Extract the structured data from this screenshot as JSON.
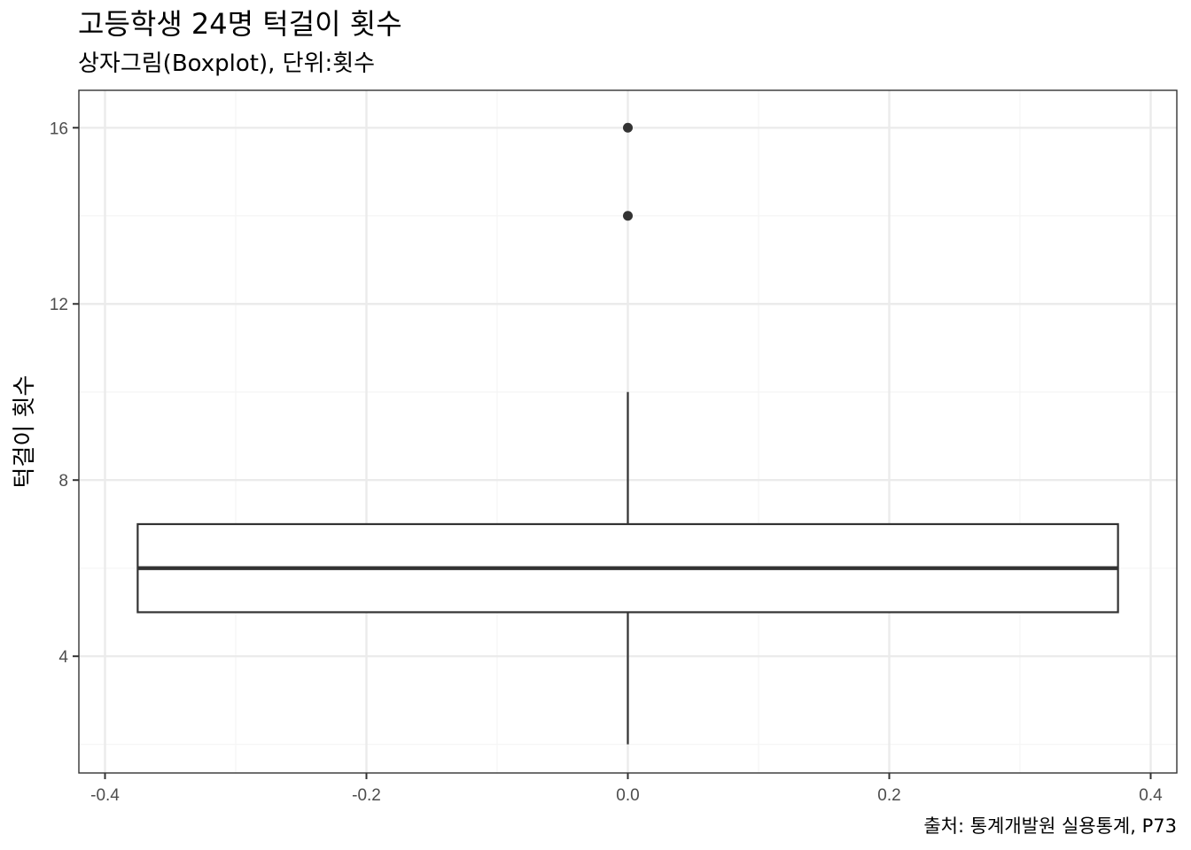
{
  "chart_data": {
    "type": "boxplot",
    "title": "고등학생 24명 턱걸이 횟수",
    "subtitle": "상자그림(Boxplot), 단위:횟수",
    "ylabel": "턱걸이 횟수",
    "xlabel": "",
    "caption": "출처: 통계개발원 실용통계, P73",
    "xlim": [
      -0.42,
      0.42
    ],
    "ylim": [
      1.35,
      16.85
    ],
    "x_ticks": [
      {
        "value": -0.4,
        "label": "-0.4"
      },
      {
        "value": -0.2,
        "label": "-0.2"
      },
      {
        "value": 0.0,
        "label": "0.0"
      },
      {
        "value": 0.2,
        "label": "0.2"
      },
      {
        "value": 0.4,
        "label": "0.4"
      }
    ],
    "y_ticks": [
      {
        "value": 4,
        "label": "4"
      },
      {
        "value": 8,
        "label": "8"
      },
      {
        "value": 12,
        "label": "12"
      },
      {
        "value": 16,
        "label": "16"
      }
    ],
    "box": {
      "x_center": 0.0,
      "x_min": -0.375,
      "x_max": 0.375,
      "whisker_low": 2,
      "q1": 5,
      "median": 6,
      "q3": 7,
      "whisker_high": 10,
      "outliers": [
        14,
        16
      ]
    },
    "grid": true,
    "theme": "bw",
    "colors": {
      "grid_major": "#ebebeb",
      "grid_minor": "#f5f5f5",
      "box_stroke": "#333333",
      "outlier": "#333333",
      "panel_border": "#333333"
    }
  }
}
